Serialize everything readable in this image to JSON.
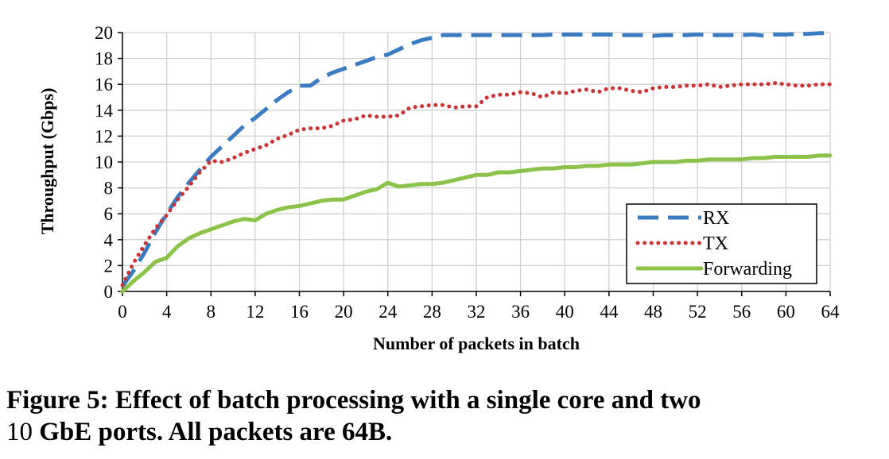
{
  "chart_data": {
    "type": "line",
    "xlabel": "Number of  packets in batch",
    "ylabel": "Throughput (Gbps)",
    "xlim": [
      0,
      64
    ],
    "ylim": [
      0,
      20
    ],
    "xticks": [
      0,
      4,
      8,
      12,
      16,
      20,
      24,
      28,
      32,
      36,
      40,
      44,
      48,
      52,
      56,
      60,
      64
    ],
    "yticks": [
      0,
      2,
      4,
      6,
      8,
      10,
      12,
      14,
      16,
      18,
      20
    ],
    "grid": true,
    "legend_position": "bottom-right",
    "series": [
      {
        "name": "RX",
        "style": "dashed",
        "color": "#3a7cc4",
        "x": [
          0,
          1,
          2,
          3,
          4,
          5,
          6,
          7,
          8,
          9,
          10,
          11,
          12,
          13,
          14,
          15,
          16,
          17,
          18,
          19,
          20,
          21,
          22,
          23,
          24,
          25,
          26,
          27,
          28,
          29,
          30,
          31,
          32,
          33,
          34,
          35,
          36,
          37,
          38,
          39,
          40,
          41,
          42,
          43,
          44,
          45,
          46,
          47,
          48,
          49,
          50,
          51,
          52,
          53,
          54,
          55,
          56,
          57,
          58,
          59,
          60,
          61,
          62,
          63,
          64
        ],
        "values": [
          0.4,
          1.6,
          3.0,
          4.6,
          6.0,
          7.3,
          8.4,
          9.4,
          10.4,
          11.2,
          12.0,
          12.8,
          13.4,
          14.1,
          14.8,
          15.4,
          15.9,
          15.9,
          16.5,
          16.9,
          17.2,
          17.5,
          17.8,
          18.1,
          18.3,
          18.7,
          19.1,
          19.4,
          19.6,
          19.8,
          19.8,
          19.8,
          19.8,
          19.8,
          19.8,
          19.8,
          19.8,
          19.8,
          19.8,
          19.85,
          19.85,
          19.85,
          19.85,
          19.85,
          19.85,
          19.8,
          19.8,
          19.8,
          19.75,
          19.8,
          19.8,
          19.8,
          19.85,
          19.8,
          19.8,
          19.8,
          19.8,
          19.85,
          19.75,
          19.85,
          19.85,
          19.9,
          19.9,
          19.95,
          19.95
        ]
      },
      {
        "name": "TX",
        "style": "dotted",
        "color": "#cc3333",
        "x": [
          0,
          1,
          2,
          3,
          4,
          5,
          6,
          7,
          8,
          9,
          10,
          11,
          12,
          13,
          14,
          15,
          16,
          17,
          18,
          19,
          20,
          21,
          22,
          23,
          24,
          25,
          26,
          27,
          28,
          29,
          30,
          31,
          32,
          33,
          34,
          35,
          36,
          37,
          38,
          39,
          40,
          41,
          42,
          43,
          44,
          45,
          46,
          47,
          48,
          49,
          50,
          51,
          52,
          53,
          54,
          55,
          56,
          57,
          58,
          59,
          60,
          61,
          62,
          63,
          64
        ],
        "values": [
          0.5,
          2.2,
          3.6,
          4.9,
          5.9,
          7.1,
          8.1,
          9.2,
          10.1,
          10.0,
          10.3,
          10.7,
          11.0,
          11.3,
          11.8,
          12.1,
          12.5,
          12.6,
          12.6,
          12.8,
          13.2,
          13.3,
          13.6,
          13.5,
          13.5,
          13.6,
          14.2,
          14.3,
          14.4,
          14.4,
          14.2,
          14.3,
          14.3,
          15.0,
          15.2,
          15.2,
          15.4,
          15.3,
          15.0,
          15.4,
          15.3,
          15.5,
          15.6,
          15.4,
          15.7,
          15.7,
          15.5,
          15.4,
          15.7,
          15.8,
          15.8,
          15.9,
          15.9,
          16.0,
          15.8,
          15.9,
          16.0,
          16.0,
          16.0,
          16.1,
          16.0,
          15.9,
          15.9,
          16.0,
          16.0
        ]
      },
      {
        "name": "Forwarding",
        "style": "solid",
        "color": "#8bc34a",
        "x": [
          0,
          1,
          2,
          3,
          4,
          5,
          6,
          7,
          8,
          9,
          10,
          11,
          12,
          13,
          14,
          15,
          16,
          17,
          18,
          19,
          20,
          21,
          22,
          23,
          24,
          25,
          26,
          27,
          28,
          29,
          30,
          31,
          32,
          33,
          34,
          35,
          36,
          37,
          38,
          39,
          40,
          41,
          42,
          43,
          44,
          45,
          46,
          47,
          48,
          49,
          50,
          51,
          52,
          53,
          54,
          55,
          56,
          57,
          58,
          59,
          60,
          61,
          62,
          63,
          64
        ],
        "values": [
          0.0,
          0.8,
          1.5,
          2.3,
          2.6,
          3.5,
          4.1,
          4.5,
          4.8,
          5.1,
          5.4,
          5.6,
          5.5,
          6.0,
          6.3,
          6.5,
          6.6,
          6.8,
          7.0,
          7.1,
          7.1,
          7.4,
          7.7,
          7.9,
          8.4,
          8.1,
          8.2,
          8.3,
          8.3,
          8.4,
          8.6,
          8.8,
          9.0,
          9.0,
          9.2,
          9.2,
          9.3,
          9.4,
          9.5,
          9.5,
          9.6,
          9.6,
          9.7,
          9.7,
          9.8,
          9.8,
          9.8,
          9.9,
          10.0,
          10.0,
          10.0,
          10.1,
          10.1,
          10.2,
          10.2,
          10.2,
          10.2,
          10.3,
          10.3,
          10.4,
          10.4,
          10.4,
          10.4,
          10.5,
          10.5
        ]
      }
    ]
  },
  "caption": {
    "line1": "Figure 5: Effect of batch processing with a single core and two",
    "line2_num": "10",
    "line2_rest": " GbE ports. All packets are 64B."
  }
}
